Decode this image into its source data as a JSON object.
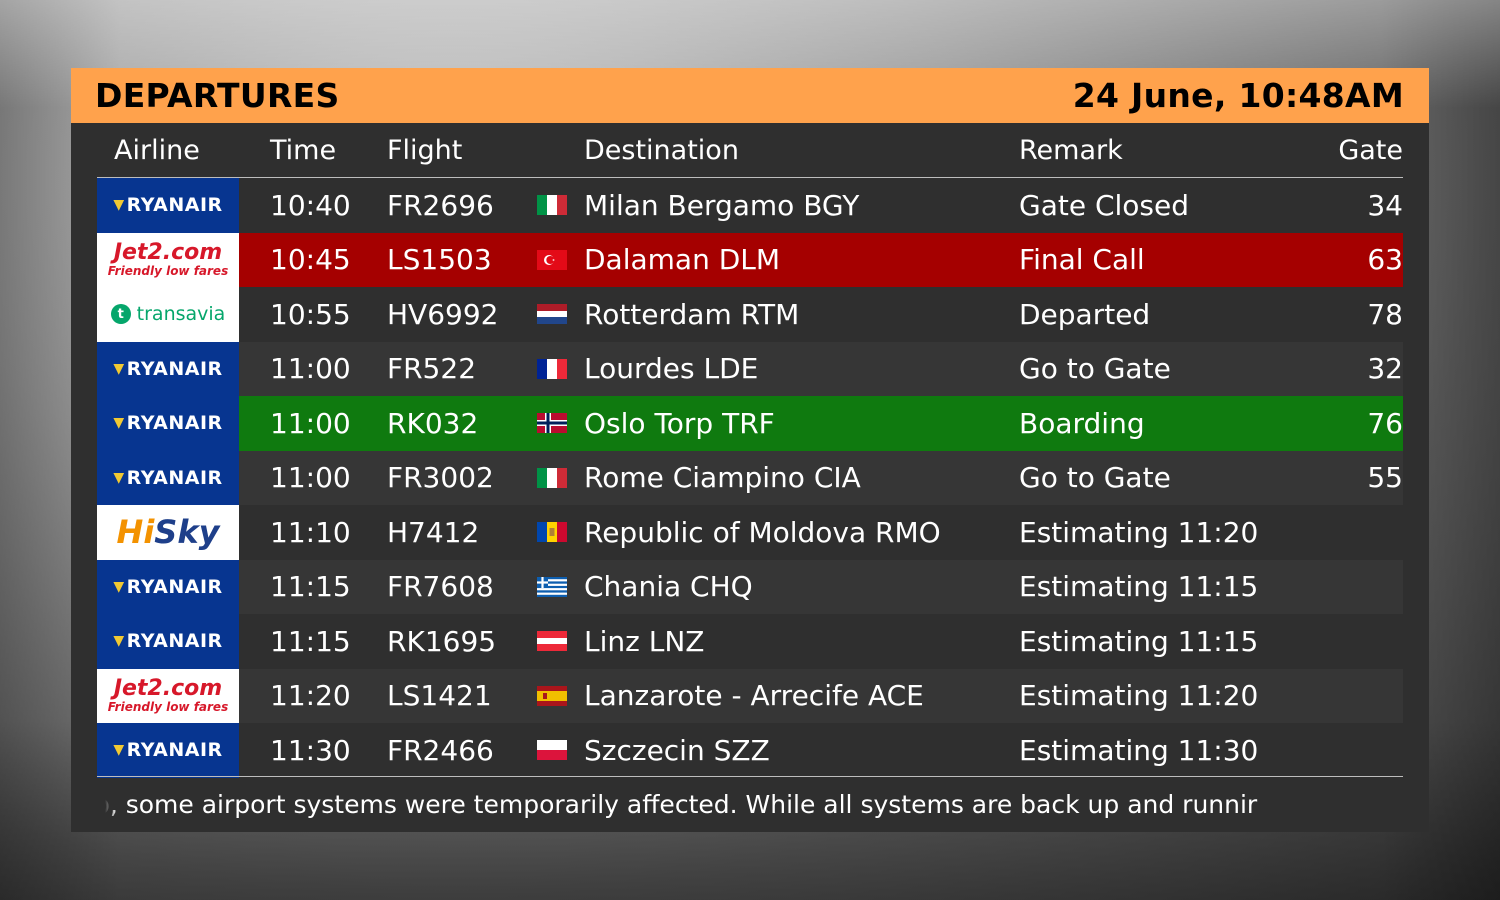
{
  "header": {
    "title": "DEPARTURES",
    "datetime": "24 June, 10:48AM"
  },
  "columns": {
    "airline": "Airline",
    "time": "Time",
    "flight": "Flight",
    "destination": "Destination",
    "remark": "Remark",
    "gate": "Gate"
  },
  "colors": {
    "header_bar": "#ffa24c",
    "final_call_row": "#a50000",
    "boarding_row": "#0f7a0f",
    "board_bg": "#2f2f2f"
  },
  "rows": [
    {
      "airline": "RYANAIR",
      "time": "10:40",
      "flight": "FR2696",
      "flag": "italy-flag-icon",
      "destination": "Milan Bergamo BGY",
      "remark": "Gate Closed",
      "gate": "34"
    },
    {
      "airline": "Jet2.com",
      "airline_tagline": "Friendly low fares",
      "time": "10:45",
      "flight": "LS1503",
      "flag": "turkey-flag-icon",
      "destination": "Dalaman DLM",
      "remark": "Final Call",
      "gate": "63"
    },
    {
      "airline": "transavia",
      "time": "10:55",
      "flight": "HV6992",
      "flag": "netherlands-flag-icon",
      "destination": "Rotterdam RTM",
      "remark": "Departed",
      "gate": "78"
    },
    {
      "airline": "RYANAIR",
      "time": "11:00",
      "flight": "FR522",
      "flag": "france-flag-icon",
      "destination": "Lourdes LDE",
      "remark": "Go to Gate",
      "gate": "32"
    },
    {
      "airline": "RYANAIR",
      "time": "11:00",
      "flight": "RK032",
      "flag": "norway-flag-icon",
      "destination": "Oslo Torp TRF",
      "remark": "Boarding",
      "gate": "76"
    },
    {
      "airline": "RYANAIR",
      "time": "11:00",
      "flight": "FR3002",
      "flag": "italy-flag-icon",
      "destination": "Rome Ciampino CIA",
      "remark": "Go to Gate",
      "gate": "55"
    },
    {
      "airline": "HiSky",
      "time": "11:10",
      "flight": "H7412",
      "flag": "moldova-flag-icon",
      "destination": "Republic of Moldova RMO",
      "remark": "Estimating 11:20",
      "gate": ""
    },
    {
      "airline": "RYANAIR",
      "time": "11:15",
      "flight": "FR7608",
      "flag": "greece-flag-icon",
      "destination": "Chania CHQ",
      "remark": "Estimating 11:15",
      "gate": ""
    },
    {
      "airline": "RYANAIR",
      "time": "11:15",
      "flight": "RK1695",
      "flag": "austria-flag-icon",
      "destination": "Linz LNZ",
      "remark": "Estimating 11:15",
      "gate": ""
    },
    {
      "airline": "Jet2.com",
      "airline_tagline": "Friendly low fares",
      "time": "11:20",
      "flight": "LS1421",
      "flag": "spain-flag-icon",
      "destination": "Lanzarote - Arrecife ACE",
      "remark": "Estimating 11:20",
      "gate": ""
    },
    {
      "airline": "RYANAIR",
      "time": "11:30",
      "flight": "FR2466",
      "flag": "poland-flag-icon",
      "destination": "Szczecin SZZ",
      "remark": "Estimating 11:30",
      "gate": ""
    }
  ],
  "ticker": {
    "text": "ip, some airport systems were temporarily affected. While all systems are back up and runnir"
  }
}
